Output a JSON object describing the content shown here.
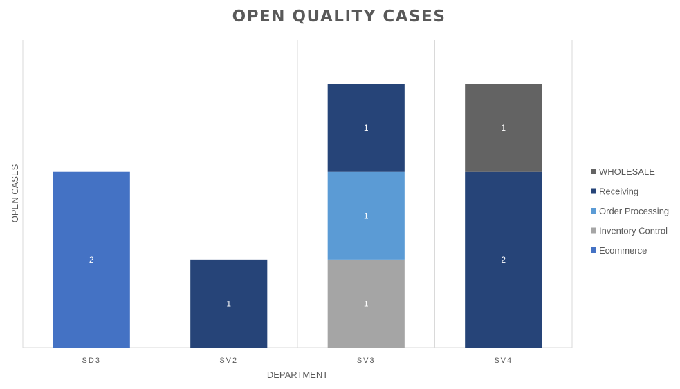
{
  "chart_data": {
    "type": "bar",
    "stacked": true,
    "title": "OPEN QUALITY CASES",
    "xlabel": "DEPARTMENT",
    "ylabel": "OPEN CASES",
    "categories": [
      "SD3",
      "SV2",
      "SV3",
      "SV4"
    ],
    "ylim": [
      0,
      3.5
    ],
    "grid": "vertical category separators",
    "legend_position": "right",
    "series": [
      {
        "name": "Ecommerce",
        "color": "#4472C4",
        "values": [
          2,
          0,
          0,
          0
        ]
      },
      {
        "name": "Inventory Control",
        "color": "#A5A5A5",
        "values": [
          0,
          0,
          1,
          0
        ]
      },
      {
        "name": "Order Processing",
        "color": "#5B9BD5",
        "values": [
          0,
          0,
          1,
          0
        ]
      },
      {
        "name": "Receiving",
        "color": "#264478",
        "values": [
          0,
          1,
          1,
          2
        ]
      },
      {
        "name": "WHOLESALE",
        "color": "#636363",
        "values": [
          0,
          0,
          0,
          1
        ]
      }
    ]
  }
}
